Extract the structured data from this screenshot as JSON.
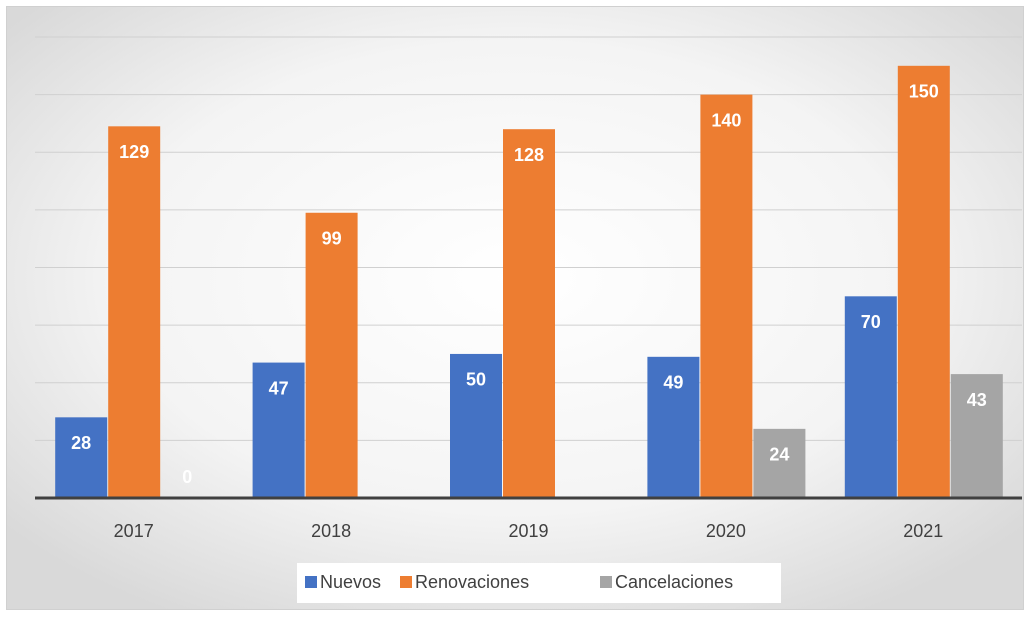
{
  "chart_data": {
    "type": "bar",
    "categories": [
      "2017",
      "2018",
      "2019",
      "2020",
      "2021"
    ],
    "series": [
      {
        "name": "Nuevos",
        "color": "#4472c4",
        "values": [
          28,
          47,
          50,
          49,
          70
        ]
      },
      {
        "name": "Renovaciones",
        "color": "#ed7d31",
        "values": [
          129,
          99,
          128,
          140,
          150
        ]
      },
      {
        "name": "Cancelaciones",
        "color": "#a5a5a5",
        "values": [
          0,
          null,
          null,
          24,
          43
        ]
      }
    ],
    "ylim": [
      0,
      160
    ],
    "yticks": [
      0,
      20,
      40,
      60,
      80,
      100,
      120,
      140,
      160
    ],
    "grid": true,
    "legend": "bottom"
  }
}
